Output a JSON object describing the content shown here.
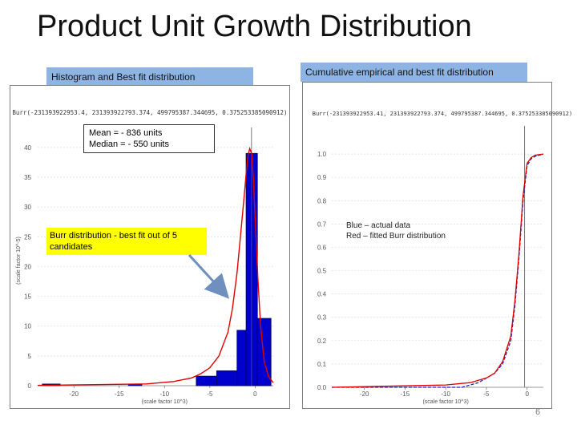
{
  "title": "Product Unit Growth Distribution",
  "page_number": "6",
  "left_panel": {
    "tab_label": "Histogram and Best fit distribution",
    "fit_caption": "Burr(-231393922953.4, 231393922793.374, 499795387.344695, 0.375253385090912)",
    "mean_label": "Mean = - 836 units",
    "median_label": "Median = - 550 units",
    "note_label": "Burr distribution - best fit out of 5 candidates"
  },
  "right_panel": {
    "tab_label": "Cumulative empirical and best fit distribution",
    "fit_caption": "Burr(-231393922953.41, 231393922793.374, 499795387.344695, 0.375253385090912)",
    "legend_line1": "Blue – actual data",
    "legend_line2": "Red – fitted Burr distribution"
  },
  "colors": {
    "bar_fill": "#0000cc",
    "fit_line": "#e00000",
    "empirical_line": "#2222cc",
    "tab_fill": "#8eb4e3",
    "note_fill": "#ffff00"
  },
  "chart_data": [
    {
      "type": "bar",
      "xlabel": "(scale factor 10^3)",
      "ylabel": "(scale factor 10^-5)",
      "xlim": [
        -24,
        2
      ],
      "ylim": [
        0,
        42
      ],
      "x_ticks": [
        -20,
        -15,
        -10,
        -5,
        0
      ],
      "y_ticks": [
        0,
        5,
        10,
        15,
        20,
        25,
        30,
        35,
        40
      ],
      "bins": [
        {
          "x0": -6.5,
          "x1": -4.25,
          "value": 1.6
        },
        {
          "x0": -4.25,
          "x1": -2.0,
          "value": 2.5
        },
        {
          "x0": -2.0,
          "x1": -1.0,
          "value": 9.3
        },
        {
          "x0": -1.0,
          "x1": 0.25,
          "value": 39.0
        },
        {
          "x0": 0.25,
          "x1": 1.75,
          "value": 11.3
        }
      ],
      "tail_bins": [
        {
          "x0": -23.5,
          "x1": -21.5,
          "value": 0.3
        },
        {
          "x0": -14.0,
          "x1": -12.5,
          "value": 0.3
        }
      ],
      "fit_curve": {
        "name": "Burr",
        "x": [
          -24,
          -12,
          -9,
          -7,
          -6,
          -5,
          -4,
          -3,
          -2.5,
          -2,
          -1.5,
          -1.2,
          -1,
          -0.8,
          -0.6,
          -0.4,
          -0.2,
          0,
          0.3,
          0.6,
          1,
          1.5,
          2
        ],
        "y": [
          0.05,
          0.3,
          0.7,
          1.3,
          2.0,
          3.0,
          5.0,
          9.0,
          13.0,
          19.0,
          27.0,
          32.0,
          35.5,
          38.5,
          39.8,
          39.0,
          35.0,
          28.0,
          18.0,
          10.0,
          4.0,
          1.5,
          0.5
        ]
      }
    },
    {
      "type": "line",
      "xlabel": "(scale factor 10^3)",
      "xlim": [
        -24,
        2
      ],
      "ylim": [
        0,
        1.1
      ],
      "x_ticks": [
        -20,
        -15,
        -10,
        -5,
        0
      ],
      "y_ticks": [
        0.0,
        0.1,
        0.2,
        0.3,
        0.4,
        0.5,
        0.6,
        0.7,
        0.8,
        0.9,
        1.0
      ],
      "series": [
        {
          "name": "actual data",
          "x": [
            -24,
            -8,
            -6,
            -5,
            -4,
            -3,
            -2,
            -1.5,
            -1,
            -0.5,
            0,
            0.5,
            1,
            2
          ],
          "y": [
            0.0,
            0.0,
            0.02,
            0.04,
            0.06,
            0.1,
            0.2,
            0.35,
            0.55,
            0.8,
            0.95,
            0.98,
            0.99,
            1.0
          ]
        },
        {
          "name": "fitted Burr distribution",
          "x": [
            -24,
            -10,
            -7,
            -5,
            -4,
            -3,
            -2,
            -1.5,
            -1,
            -0.5,
            0,
            0.5,
            1,
            2
          ],
          "y": [
            0.0,
            0.01,
            0.02,
            0.04,
            0.06,
            0.11,
            0.22,
            0.37,
            0.57,
            0.82,
            0.96,
            0.985,
            0.995,
            1.0
          ]
        }
      ],
      "vline_x": -0.3
    }
  ]
}
